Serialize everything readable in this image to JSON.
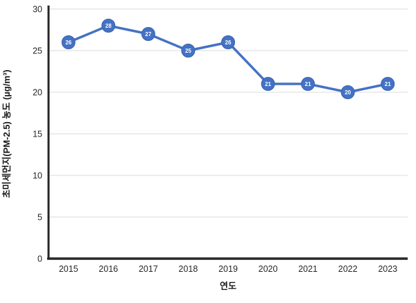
{
  "chart_data": {
    "type": "line",
    "title": "",
    "x": [
      "2015",
      "2016",
      "2017",
      "2018",
      "2019",
      "2020",
      "2021",
      "2022",
      "2023"
    ],
    "series": [
      {
        "name": "초미세먼지(PM-2.5) 농도",
        "values": [
          26,
          28,
          27,
          25,
          26,
          21,
          21,
          20,
          21
        ]
      }
    ],
    "xlabel": "연도",
    "ylabel": "초미세먼지(PM-2.5) 농도 (µg/m³)",
    "ylim": [
      0,
      30
    ],
    "ytick_step": 5,
    "yticks": [
      0,
      5,
      10,
      15,
      20,
      25,
      30
    ],
    "grid": true,
    "data_labels": true,
    "legend_position": "none",
    "colors": {
      "line": "#4472C4",
      "marker_fill": "#4472C4",
      "marker_stroke": "#3A62B0",
      "label_text": "#FFFFFF",
      "grid": "#E2E2E2",
      "axis": "#262626",
      "tick_text": "#262626"
    }
  }
}
